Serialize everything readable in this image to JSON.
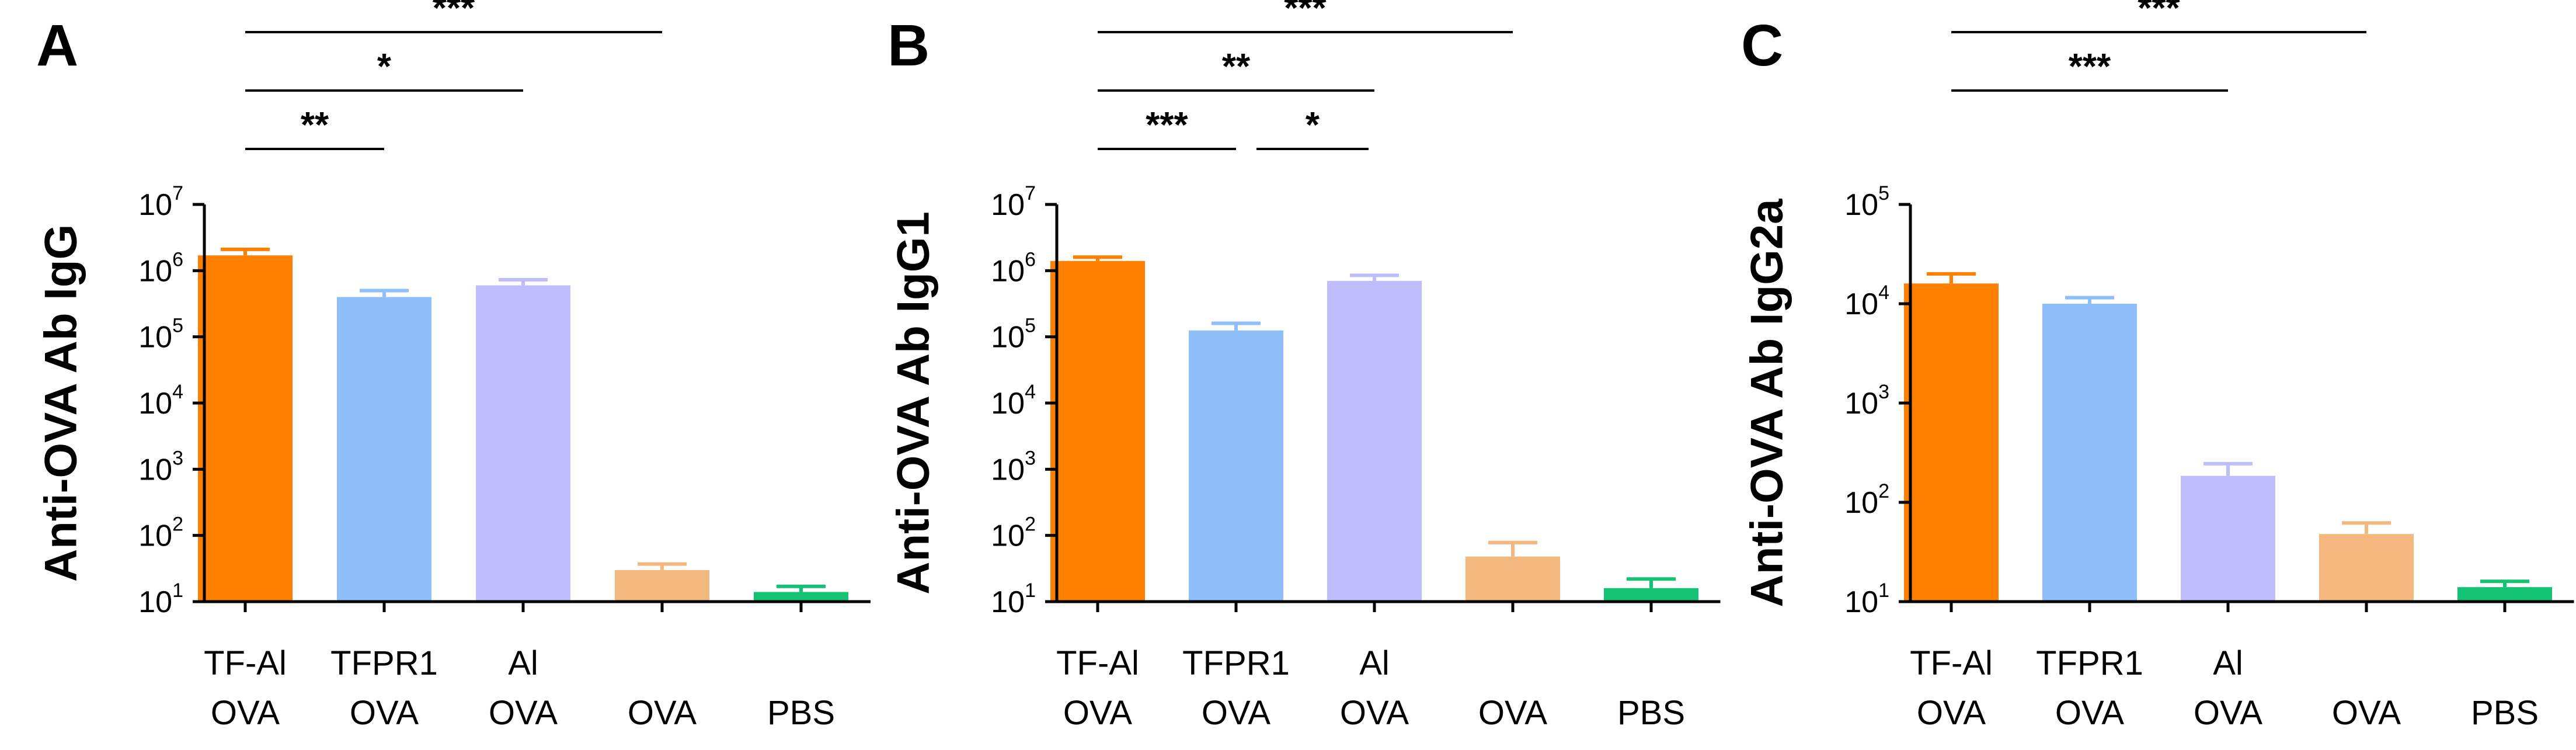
{
  "colors": {
    "tf_al_ova": "#ff7f00",
    "tfpr1_ova": "#8fbffa",
    "al_ova": "#bfbdfb",
    "ova": "#f3b87e",
    "pbs": "#14c274",
    "axis": "#000000"
  },
  "chart_data": [
    {
      "type": "bar",
      "panel": "A",
      "ylabel": "Anti-OVA Ab IgG",
      "yscale": "log",
      "ylim": [
        10,
        10000000
      ],
      "yticks": [
        {
          "base": "10",
          "exp": "1"
        },
        {
          "base": "10",
          "exp": "2"
        },
        {
          "base": "10",
          "exp": "3"
        },
        {
          "base": "10",
          "exp": "4"
        },
        {
          "base": "10",
          "exp": "5"
        },
        {
          "base": "10",
          "exp": "6"
        },
        {
          "base": "10",
          "exp": "7"
        }
      ],
      "categories": [
        {
          "line1": "TF-Al",
          "line2": "OVA"
        },
        {
          "line1": "TFPR1",
          "line2": "OVA"
        },
        {
          "line1": "Al",
          "line2": "OVA"
        },
        {
          "line1": "",
          "line2": "OVA"
        },
        {
          "line1": "",
          "line2": "PBS"
        }
      ],
      "values": [
        1700000,
        400000,
        600000,
        30,
        14
      ],
      "errors": [
        2100000,
        500000,
        730000,
        37,
        17
      ],
      "significance": [
        {
          "from": 0,
          "to": 3,
          "label": "***",
          "level": 3
        },
        {
          "from": 0,
          "to": 2,
          "label": "*",
          "level": 2
        },
        {
          "from": 0,
          "to": 1,
          "label": "**",
          "level": 1
        }
      ]
    },
    {
      "type": "bar",
      "panel": "B",
      "ylabel": "Anti-OVA Ab IgG1",
      "yscale": "log",
      "ylim": [
        10,
        10000000
      ],
      "yticks": [
        {
          "base": "10",
          "exp": "1"
        },
        {
          "base": "10",
          "exp": "2"
        },
        {
          "base": "10",
          "exp": "3"
        },
        {
          "base": "10",
          "exp": "4"
        },
        {
          "base": "10",
          "exp": "5"
        },
        {
          "base": "10",
          "exp": "6"
        },
        {
          "base": "10",
          "exp": "7"
        }
      ],
      "categories": [
        {
          "line1": "TF-Al",
          "line2": "OVA"
        },
        {
          "line1": "TFPR1",
          "line2": "OVA"
        },
        {
          "line1": "Al",
          "line2": "OVA"
        },
        {
          "line1": "",
          "line2": "OVA"
        },
        {
          "line1": "",
          "line2": "PBS"
        }
      ],
      "values": [
        1400000,
        125000,
        700000,
        48,
        16
      ],
      "errors": [
        1600000,
        160000,
        850000,
        78,
        22
      ],
      "significance": [
        {
          "from": 0,
          "to": 3,
          "label": "***",
          "level": 3
        },
        {
          "from": 0,
          "to": 2,
          "label": "**",
          "level": 2
        },
        {
          "from": 0,
          "to": 1,
          "label": "***",
          "level": 1
        },
        {
          "from": 1,
          "to": 2,
          "label": "*",
          "level": 1
        }
      ]
    },
    {
      "type": "bar",
      "panel": "C",
      "ylabel": "Anti-OVA Ab IgG2a",
      "yscale": "log",
      "ylim": [
        10,
        100000
      ],
      "yticks": [
        {
          "base": "10",
          "exp": "1"
        },
        {
          "base": "10",
          "exp": "2"
        },
        {
          "base": "10",
          "exp": "3"
        },
        {
          "base": "10",
          "exp": "4"
        },
        {
          "base": "10",
          "exp": "5"
        }
      ],
      "categories": [
        {
          "line1": "TF-Al",
          "line2": "OVA"
        },
        {
          "line1": "TFPR1",
          "line2": "OVA"
        },
        {
          "line1": "Al",
          "line2": "OVA"
        },
        {
          "line1": "",
          "line2": "OVA"
        },
        {
          "line1": "",
          "line2": "PBS"
        }
      ],
      "values": [
        16000,
        10000,
        185,
        48,
        14
      ],
      "errors": [
        20000,
        11500,
        245,
        62,
        16
      ],
      "significance": [
        {
          "from": 0,
          "to": 3,
          "label": "***",
          "level": 3
        },
        {
          "from": 0,
          "to": 2,
          "label": "***",
          "level": 2
        }
      ]
    }
  ]
}
